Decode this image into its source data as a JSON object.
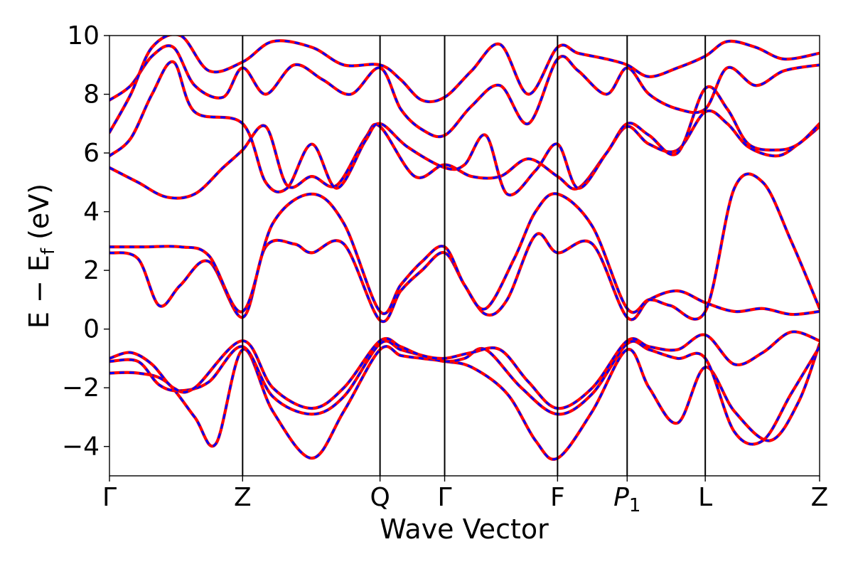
{
  "chart_data": {
    "type": "line",
    "title": "",
    "xlabel": "Wave Vector",
    "ylabel": "E − E",
    "ylabel_sub": "f",
    "ylabel_unit": " (eV)",
    "ylim": [
      -5,
      10
    ],
    "yticks": [
      -4,
      -2,
      0,
      2,
      4,
      6,
      8,
      10
    ],
    "ytick_labels": [
      "−4",
      "−2",
      "0",
      "2",
      "4",
      "6",
      "8",
      "10"
    ],
    "kpath": [
      {
        "label": "Γ",
        "x": 0.0,
        "sub": ""
      },
      {
        "label": "Z",
        "x": 0.1875,
        "sub": ""
      },
      {
        "label": "Q",
        "x": 0.381,
        "sub": ""
      },
      {
        "label": "Γ",
        "x": 0.472,
        "sub": ""
      },
      {
        "label": "F",
        "x": 0.631,
        "sub": ""
      },
      {
        "label": "P",
        "x": 0.729,
        "sub": "1",
        "italic": true
      },
      {
        "label": "L",
        "x": 0.839,
        "sub": ""
      },
      {
        "label": "Z",
        "x": 1.0,
        "sub": ""
      }
    ],
    "xlim": [
      0,
      1
    ],
    "grid": false,
    "series_style": [
      {
        "color": "#ff0000",
        "style": "solid"
      },
      {
        "color": "#0000ff",
        "style": "dashed"
      }
    ],
    "bands": [
      {
        "x": [
          0,
          0.04,
          0.08,
          0.12,
          0.15,
          0.1875,
          0.23,
          0.285,
          0.33,
          0.381,
          0.41,
          0.44,
          0.472,
          0.51,
          0.56,
          0.6,
          0.631,
          0.68,
          0.729,
          0.76,
          0.8,
          0.839,
          0.88,
          0.93,
          0.97,
          1.0
        ],
        "y": [
          -1.5,
          -1.5,
          -1.8,
          -3.0,
          -3.9,
          -0.7,
          -2.8,
          -4.4,
          -2.8,
          -0.7,
          -0.9,
          -1.0,
          -1.1,
          -1.3,
          -2.2,
          -3.8,
          -4.4,
          -2.8,
          -0.7,
          -2.0,
          -3.2,
          -1.3,
          -2.8,
          -3.8,
          -2.5,
          -0.5
        ]
      },
      {
        "x": [
          0,
          0.04,
          0.07,
          0.1,
          0.14,
          0.1875,
          0.23,
          0.285,
          0.33,
          0.381,
          0.41,
          0.44,
          0.472,
          0.5,
          0.53,
          0.58,
          0.631,
          0.68,
          0.729,
          0.76,
          0.8,
          0.839,
          0.88,
          0.92,
          0.96,
          1.0
        ],
        "y": [
          -1.1,
          -1.1,
          -1.9,
          -2.1,
          -1.8,
          -0.6,
          -2.3,
          -2.9,
          -2.3,
          -0.5,
          -0.7,
          -0.9,
          -1.1,
          -1.0,
          -0.7,
          -2.0,
          -2.9,
          -2.2,
          -0.5,
          -0.7,
          -1.0,
          -1.0,
          -3.5,
          -3.8,
          -2.2,
          -0.6
        ]
      },
      {
        "x": [
          0,
          0.03,
          0.06,
          0.09,
          0.12,
          0.1875,
          0.23,
          0.285,
          0.33,
          0.381,
          0.41,
          0.44,
          0.472,
          0.51,
          0.55,
          0.59,
          0.631,
          0.68,
          0.729,
          0.76,
          0.8,
          0.839,
          0.88,
          0.92,
          0.96,
          1.0
        ],
        "y": [
          -1.0,
          -0.8,
          -1.2,
          -2.0,
          -2.0,
          -0.4,
          -2.0,
          -2.7,
          -2.0,
          -0.4,
          -0.6,
          -0.9,
          -1.0,
          -0.8,
          -0.7,
          -1.8,
          -2.7,
          -2.0,
          -0.4,
          -0.6,
          -0.7,
          -0.2,
          -1.2,
          -0.8,
          -0.1,
          -0.4
        ]
      },
      {
        "x": [
          0,
          0.04,
          0.07,
          0.1,
          0.14,
          0.1875,
          0.22,
          0.26,
          0.285,
          0.33,
          0.381,
          0.41,
          0.44,
          0.472,
          0.5,
          0.53,
          0.56,
          0.6,
          0.631,
          0.68,
          0.729,
          0.76,
          0.8,
          0.839,
          0.88,
          0.92,
          0.96,
          1.0
        ],
        "y": [
          2.6,
          2.4,
          0.8,
          1.5,
          2.3,
          0.4,
          2.8,
          2.9,
          2.6,
          2.9,
          0.3,
          1.3,
          2.0,
          2.6,
          1.5,
          0.5,
          1.0,
          3.2,
          2.6,
          2.9,
          0.4,
          1.0,
          1.3,
          0.9,
          0.6,
          0.7,
          0.5,
          0.6
        ]
      },
      {
        "x": [
          0,
          0.05,
          0.1,
          0.14,
          0.1875,
          0.23,
          0.285,
          0.33,
          0.381,
          0.41,
          0.44,
          0.472,
          0.5,
          0.53,
          0.57,
          0.6,
          0.631,
          0.68,
          0.729,
          0.76,
          0.79,
          0.839,
          0.88,
          0.92,
          0.96,
          1.0
        ],
        "y": [
          2.8,
          2.8,
          2.8,
          2.5,
          0.6,
          3.6,
          4.6,
          3.6,
          0.6,
          1.5,
          2.3,
          2.8,
          1.5,
          0.7,
          2.4,
          4.0,
          4.6,
          3.5,
          0.7,
          1.0,
          0.8,
          0.6,
          4.8,
          5.0,
          3.0,
          0.7
        ]
      },
      {
        "x": [
          0,
          0.04,
          0.08,
          0.12,
          0.16,
          0.1875,
          0.22,
          0.25,
          0.285,
          0.32,
          0.36,
          0.381,
          0.43,
          0.472,
          0.51,
          0.55,
          0.59,
          0.631,
          0.66,
          0.7,
          0.729,
          0.76,
          0.8,
          0.839,
          0.87,
          0.9,
          0.94,
          0.97,
          1.0
        ],
        "y": [
          5.5,
          5.0,
          4.5,
          4.6,
          5.5,
          6.1,
          6.9,
          4.9,
          5.2,
          4.9,
          6.5,
          6.9,
          5.2,
          5.6,
          5.2,
          5.2,
          5.8,
          5.2,
          4.8,
          6.0,
          6.9,
          6.3,
          6.1,
          7.4,
          7.0,
          6.2,
          5.9,
          6.3,
          6.9
        ]
      },
      {
        "x": [
          0,
          0.03,
          0.06,
          0.09,
          0.12,
          0.1875,
          0.22,
          0.25,
          0.285,
          0.32,
          0.36,
          0.381,
          0.42,
          0.472,
          0.5,
          0.53,
          0.56,
          0.6,
          0.631,
          0.66,
          0.7,
          0.729,
          0.76,
          0.8,
          0.839,
          0.87,
          0.9,
          0.94,
          0.97,
          1.0
        ],
        "y": [
          5.9,
          6.5,
          8.0,
          9.1,
          7.4,
          7.0,
          5.0,
          4.8,
          6.3,
          4.8,
          6.4,
          7.0,
          6.2,
          5.5,
          5.6,
          6.6,
          4.6,
          5.4,
          6.3,
          4.8,
          6.0,
          7.0,
          6.6,
          6.0,
          8.2,
          7.5,
          6.3,
          6.1,
          6.3,
          7.0
        ]
      },
      {
        "x": [
          0,
          0.03,
          0.06,
          0.09,
          0.12,
          0.16,
          0.1875,
          0.22,
          0.26,
          0.3,
          0.34,
          0.381,
          0.41,
          0.44,
          0.472,
          0.51,
          0.55,
          0.59,
          0.631,
          0.66,
          0.7,
          0.729,
          0.76,
          0.8,
          0.839,
          0.87,
          0.91,
          0.95,
          1.0
        ],
        "y": [
          7.8,
          8.3,
          9.3,
          9.6,
          8.3,
          7.9,
          8.9,
          8.0,
          9.0,
          8.5,
          8.0,
          8.9,
          7.5,
          6.8,
          6.6,
          7.6,
          8.3,
          7.0,
          9.2,
          8.8,
          8.0,
          8.9,
          8.0,
          7.5,
          7.5,
          8.9,
          8.3,
          8.8,
          9.0
        ]
      },
      {
        "x": [
          0,
          0.03,
          0.06,
          0.1,
          0.14,
          0.1875,
          0.23,
          0.285,
          0.33,
          0.381,
          0.41,
          0.44,
          0.472,
          0.51,
          0.55,
          0.59,
          0.631,
          0.66,
          0.7,
          0.729,
          0.76,
          0.8,
          0.839,
          0.87,
          0.91,
          0.95,
          1.0
        ],
        "y": [
          6.7,
          8.0,
          9.6,
          10.0,
          8.8,
          9.1,
          9.8,
          9.6,
          9.0,
          9.0,
          8.5,
          7.8,
          7.9,
          8.8,
          9.7,
          8.0,
          9.6,
          9.4,
          9.2,
          9.0,
          8.6,
          8.9,
          9.3,
          9.8,
          9.6,
          9.2,
          9.4
        ]
      }
    ]
  }
}
